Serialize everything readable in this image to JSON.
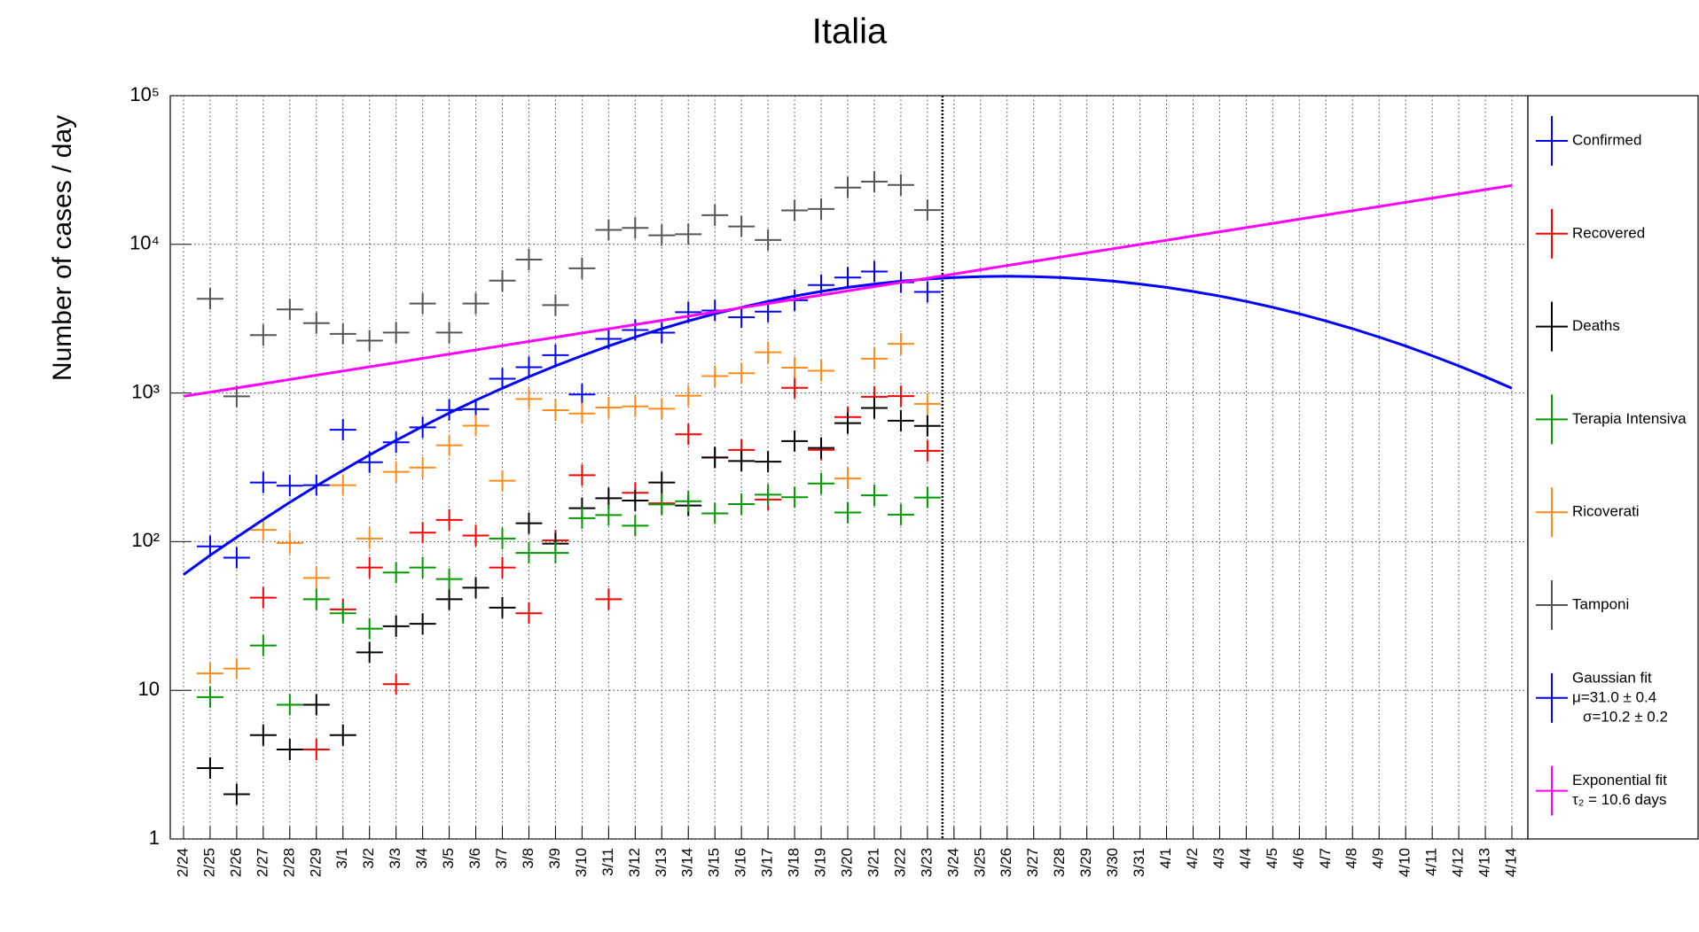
{
  "chart_data": {
    "type": "line",
    "title": "Italia",
    "y_label": "Number of cases / day",
    "log_y": true,
    "grid": true,
    "legend": "right",
    "ylim": [
      1,
      100000
    ],
    "yticks": [
      1,
      10,
      {
        "value": 100,
        "label": "10²"
      },
      {
        "value": 1000,
        "label": "10³"
      },
      {
        "value": 10000,
        "label": "10⁴"
      },
      {
        "value": 100000,
        "label": "10⁵"
      }
    ],
    "categories": [
      "2/24",
      "2/25",
      "2/26",
      "2/27",
      "2/28",
      "2/29",
      "3/1",
      "3/2",
      "3/3",
      "3/4",
      "3/5",
      "3/6",
      "3/7",
      "3/8",
      "3/9",
      "3/10",
      "3/11",
      "3/12",
      "3/13",
      "3/14",
      "3/15",
      "3/16",
      "3/17",
      "3/18",
      "3/19",
      "3/20",
      "3/21",
      "3/22",
      "3/23",
      "3/24",
      "3/25",
      "3/26",
      "3/27",
      "3/28",
      "3/29",
      "3/30",
      "3/31",
      "4/1",
      "4/2",
      "4/3",
      "4/4",
      "4/5",
      "4/6",
      "4/7",
      "4/8",
      "4/9",
      "4/10",
      "4/11",
      "4/12",
      "4/13",
      "4/14"
    ],
    "series": [
      {
        "name": "Confirmed",
        "color": "#0000ff",
        "draw": "markers",
        "values": [
          null,
          93,
          78,
          250,
          238,
          240,
          566,
          342,
          466,
          587,
          769,
          778,
          1247,
          1492,
          1797,
          977,
          2313,
          2651,
          2547,
          3497,
          3590,
          3233,
          3526,
          4207,
          5322,
          5986,
          6557,
          5560,
          4789,
          null,
          null,
          null,
          null,
          null,
          null,
          null,
          null,
          null,
          null,
          null,
          null,
          null,
          null,
          null,
          null,
          null,
          null,
          null,
          null,
          null,
          null
        ]
      },
      {
        "name": "Recovered",
        "color": "#ff0000",
        "draw": "markers",
        "values": [
          null,
          null,
          null,
          42,
          null,
          4,
          35,
          67,
          11,
          115,
          140,
          110,
          67,
          33,
          102,
          280,
          41,
          213,
          181,
          527,
          369,
          414,
          192,
          1084,
          415,
          689,
          943,
          952,
          408,
          null,
          null,
          null,
          null,
          null,
          null,
          null,
          null,
          null,
          null,
          null,
          null,
          null,
          null,
          null,
          null,
          null,
          null,
          null,
          null,
          null,
          null
        ]
      },
      {
        "name": "Deaths",
        "color": "#000000",
        "draw": "markers",
        "values": [
          null,
          3,
          2,
          5,
          4,
          8,
          5,
          18,
          27,
          28,
          41,
          49,
          36,
          133,
          97,
          168,
          196,
          189,
          250,
          175,
          368,
          349,
          345,
          475,
          427,
          627,
          793,
          651,
          601,
          null,
          null,
          null,
          null,
          null,
          null,
          null,
          null,
          null,
          null,
          null,
          null,
          null,
          null,
          null,
          null,
          null,
          null,
          null,
          null,
          null,
          null
        ]
      },
      {
        "name": "Terapia Intensiva",
        "color": "#009900",
        "draw": "markers",
        "values": [
          null,
          9,
          null,
          20,
          8,
          41,
          33,
          26,
          62,
          67,
          56,
          null,
          105,
          84,
          84,
          144,
          151,
          128,
          178,
          187,
          155,
          179,
          207,
          199,
          246,
          157,
          205,
          152,
          198,
          null,
          null,
          null,
          null,
          null,
          null,
          null,
          null,
          null,
          null,
          null,
          null,
          null,
          null,
          null,
          null,
          null,
          null,
          null,
          null,
          null,
          null
        ]
      },
      {
        "name": "Ricoverati",
        "color": "#ff8c1a",
        "draw": "markers",
        "values": [
          null,
          13,
          14,
          120,
          98,
          57,
          240,
          105,
          295,
          315,
          445,
          603,
          257,
          911,
          766,
          728,
          798,
          812,
          784,
          960,
          1300,
          1360,
          1880,
          1480,
          1410,
          266,
          1700,
          2140,
          845,
          null,
          null,
          null,
          null,
          null,
          null,
          null,
          null,
          null,
          null,
          null,
          null,
          null,
          null,
          null,
          null,
          null,
          null,
          null,
          null,
          null,
          null
        ]
      },
      {
        "name": "Tamponi",
        "color": "#555555",
        "draw": "markers",
        "values": [
          null,
          4300,
          950,
          2450,
          3650,
          2950,
          2500,
          2250,
          2550,
          4000,
          2550,
          4000,
          5700,
          7900,
          3900,
          6900,
          12500,
          12900,
          11500,
          11700,
          15700,
          13200,
          10700,
          16900,
          17300,
          24100,
          26400,
          25100,
          17000,
          null,
          null,
          null,
          null,
          null,
          null,
          null,
          null,
          null,
          null,
          null,
          null,
          null,
          null,
          null,
          null,
          null,
          null,
          null,
          null,
          null,
          null
        ]
      },
      {
        "name": "Gaussian fit",
        "legend_lines": [
          "μ=31.0 ± 0.4",
          "σ=10.2 ± 0.2"
        ],
        "color": "#0000ff",
        "draw": "line",
        "values": [
          60,
          81,
          107,
          141,
          184,
          237,
          302,
          383,
          480,
          596,
          733,
          893,
          1076,
          1285,
          1521,
          1782,
          2069,
          2378,
          2708,
          3053,
          3411,
          3772,
          4133,
          4485,
          4820,
          5131,
          5409,
          5649,
          5841,
          5984,
          6071,
          6100,
          6071,
          5984,
          5841,
          5649,
          5409,
          5131,
          4820,
          4485,
          4133,
          3772,
          3411,
          3053,
          2708,
          2378,
          2069,
          1782,
          1521,
          1285,
          1076
        ]
      },
      {
        "name": "Exponential fit",
        "legend_lines": [
          "τ₂ = 10.6 days"
        ],
        "color": "#ff00ff",
        "draw": "line",
        "values": [
          950,
          1014,
          1082,
          1155,
          1233,
          1317,
          1406,
          1501,
          1602,
          1710,
          1826,
          1949,
          2081,
          2221,
          2371,
          2531,
          2702,
          2885,
          3080,
          3288,
          3510,
          3747,
          4000,
          4270,
          4558,
          4866,
          5194,
          5545,
          5919,
          6319,
          6746,
          7201,
          7687,
          8206,
          8760,
          9351,
          9983,
          10657,
          11376,
          12144,
          12964,
          13839,
          14773,
          15770,
          16835,
          17971,
          19184,
          20479,
          21862,
          23337,
          24913
        ]
      }
    ]
  }
}
